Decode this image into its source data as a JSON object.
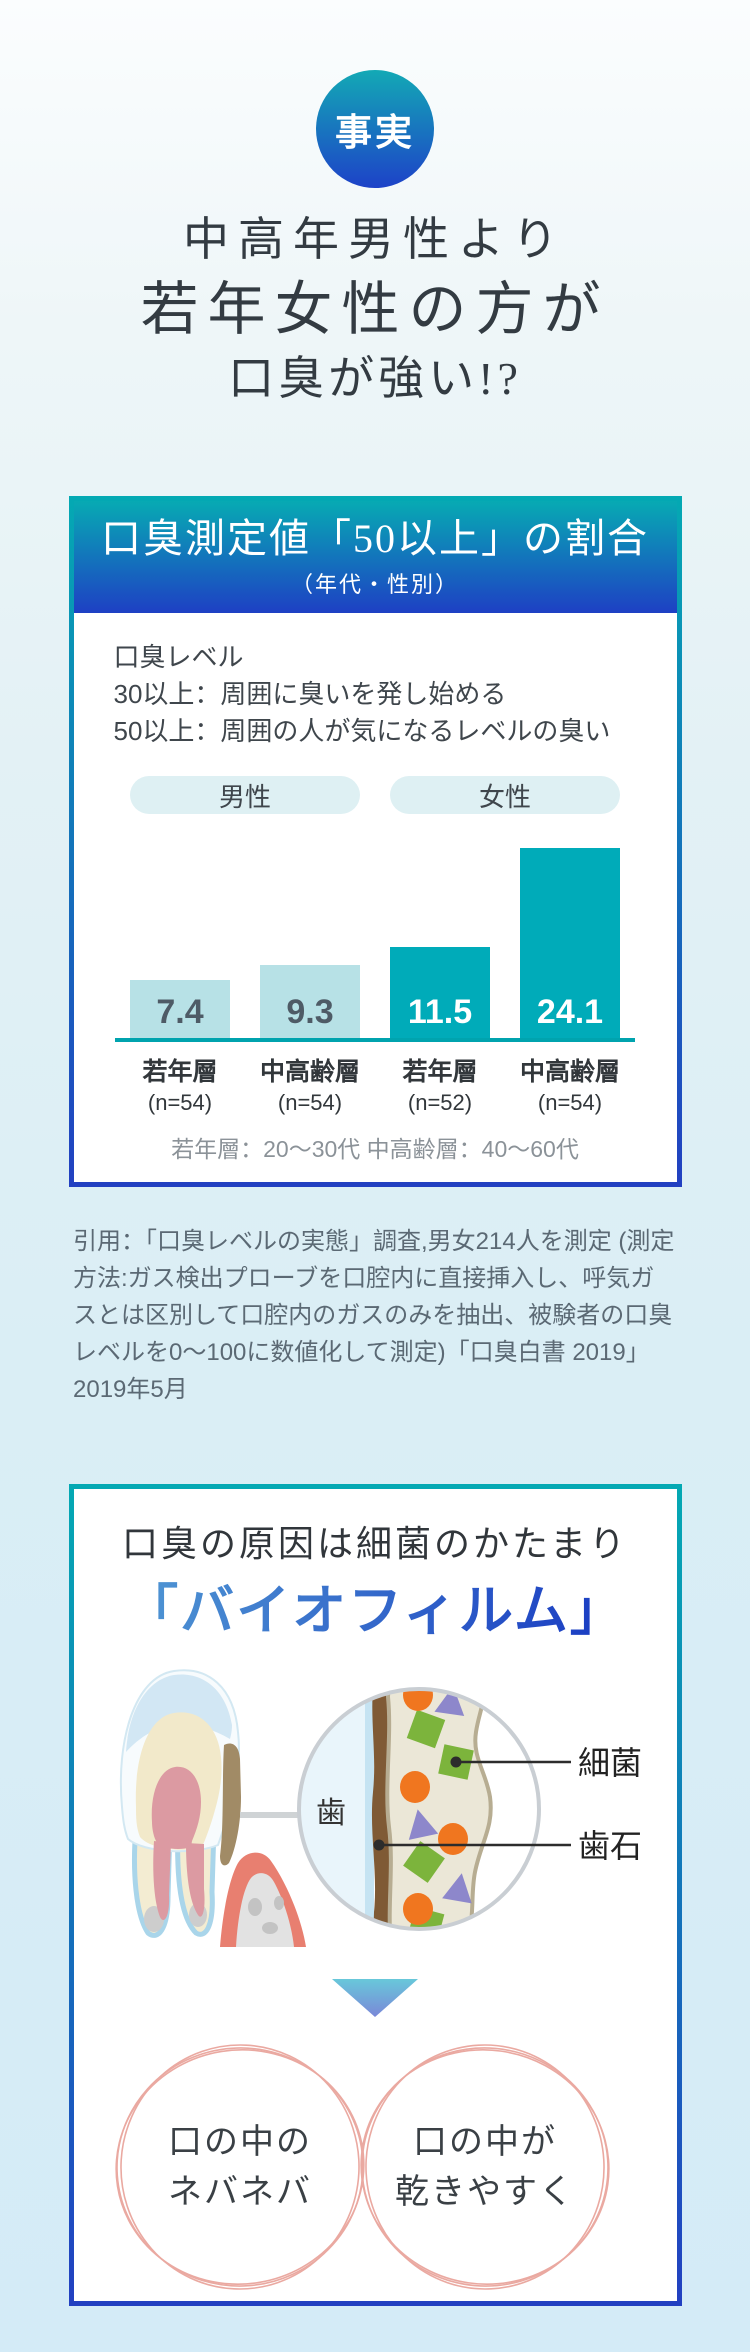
{
  "badge": {
    "label": "事実"
  },
  "headline": {
    "line1": "中高年男性より",
    "line2": "若年女性の方が",
    "line3": "口臭が強い!?"
  },
  "chart_card": {
    "header": {
      "title": "口臭測定値「50以上」の割合",
      "subtitle": "（年代・性別）"
    },
    "legend_lines": [
      "口臭レベル",
      "30以上：周囲に臭いを発し始める",
      "50以上：周囲の人が気になるレベルの臭い"
    ],
    "group_labels": [
      "男性",
      "女性"
    ],
    "footnote": "若年層：20〜30代 中高齢層：40〜60代"
  },
  "chart_data": {
    "type": "bar",
    "title": "口臭測定値「50以上」の割合（年代・性別）",
    "groups": [
      "男性",
      "女性"
    ],
    "categories": [
      "若年層",
      "中高齢層",
      "若年層",
      "中高齢層"
    ],
    "sample_sizes": [
      "(n=54)",
      "(n=54)",
      "(n=52)",
      "(n=54)"
    ],
    "values": [
      7.4,
      9.3,
      11.5,
      24.1
    ],
    "bar_colors": [
      "#b7e1e6",
      "#b7e1e6",
      "#00abb9",
      "#00abb9"
    ],
    "value_label_colors": [
      "#4e5b66",
      "#4e5b66",
      "#ffffff",
      "#ffffff"
    ],
    "ylim": [
      0,
      25
    ],
    "grid": false,
    "legend_position": "top"
  },
  "citation": {
    "text": "引用：「口臭レベルの実態」調査,男女214人を測定 (測定方法:ガス検出プローブを口腔内に直接挿入し、呼気ガスとは区別して口腔内のガスのみを抽出、被験者の口臭レベルを0〜100に数値化して測定)「口臭白書 2019」2019年5月"
  },
  "biofilm_card": {
    "title": "口臭の原因は細菌のかたまり",
    "keyword": "「バイオフィルム」",
    "diagram_labels": {
      "tooth": "歯",
      "bacteria": "細菌",
      "tartar": "歯石"
    },
    "effects": [
      {
        "line1": "口の中の",
        "line2": "ネバネバ"
      },
      {
        "line1": "口の中が",
        "line2": "乾きやすく"
      }
    ]
  },
  "colors": {
    "accent_teal": "#00abb9",
    "accent_blue": "#1e41c4",
    "light_bar": "#b7e1e6",
    "pill_bg": "#def0f3",
    "baseline": "#00a3ae",
    "keyword_blue": "#2653c6",
    "sketch_circle_stroke": "#eaa9a1"
  }
}
